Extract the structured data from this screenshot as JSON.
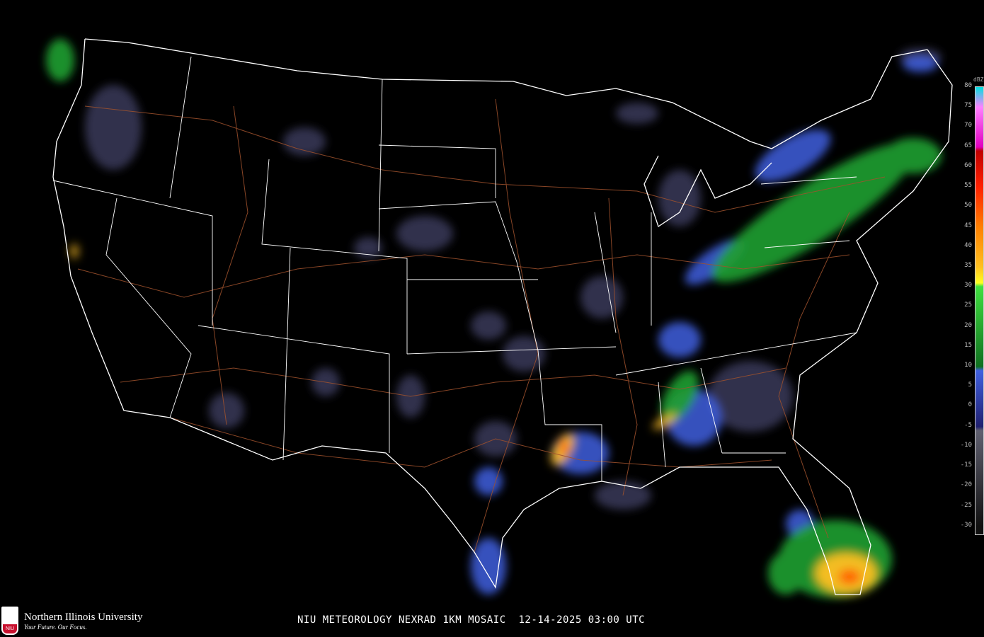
{
  "title": "NIU METEOROLOGY NEXRAD 1KM MOSAIC  12-14-2025 03:00 UTC",
  "logo": {
    "name": "Northern Illinois University",
    "tagline": "Your Future. Our Focus.",
    "mark": "NIU"
  },
  "legend": {
    "unit": "dBZ",
    "labels": [
      "80",
      "75",
      "70",
      "65",
      "60",
      "55",
      "50",
      "45",
      "40",
      "35",
      "30",
      "25",
      "20",
      "15",
      "10",
      "5",
      "0",
      "-5",
      "-10",
      "-15",
      "-20",
      "-25",
      "-30"
    ],
    "stops": [
      {
        "dbz": 80,
        "color": "#00e0e0"
      },
      {
        "dbz": 75,
        "color": "#ff80ff"
      },
      {
        "dbz": 65,
        "color": "#e000c0"
      },
      {
        "dbz": 64,
        "color": "#c00000"
      },
      {
        "dbz": 55,
        "color": "#ff2000"
      },
      {
        "dbz": 45,
        "color": "#ff8000"
      },
      {
        "dbz": 35,
        "color": "#ffc020"
      },
      {
        "dbz": 31,
        "color": "#ffff20"
      },
      {
        "dbz": 30,
        "color": "#40e040"
      },
      {
        "dbz": 10,
        "color": "#107020"
      },
      {
        "dbz": 9,
        "color": "#4060e0"
      },
      {
        "dbz": -5,
        "color": "#202070"
      },
      {
        "dbz": -6,
        "color": "#606070"
      },
      {
        "dbz": -30,
        "color": "#101010"
      }
    ]
  },
  "colors": {
    "background": "#000000",
    "borders": "#ffffff",
    "highways": "#a0522d"
  }
}
